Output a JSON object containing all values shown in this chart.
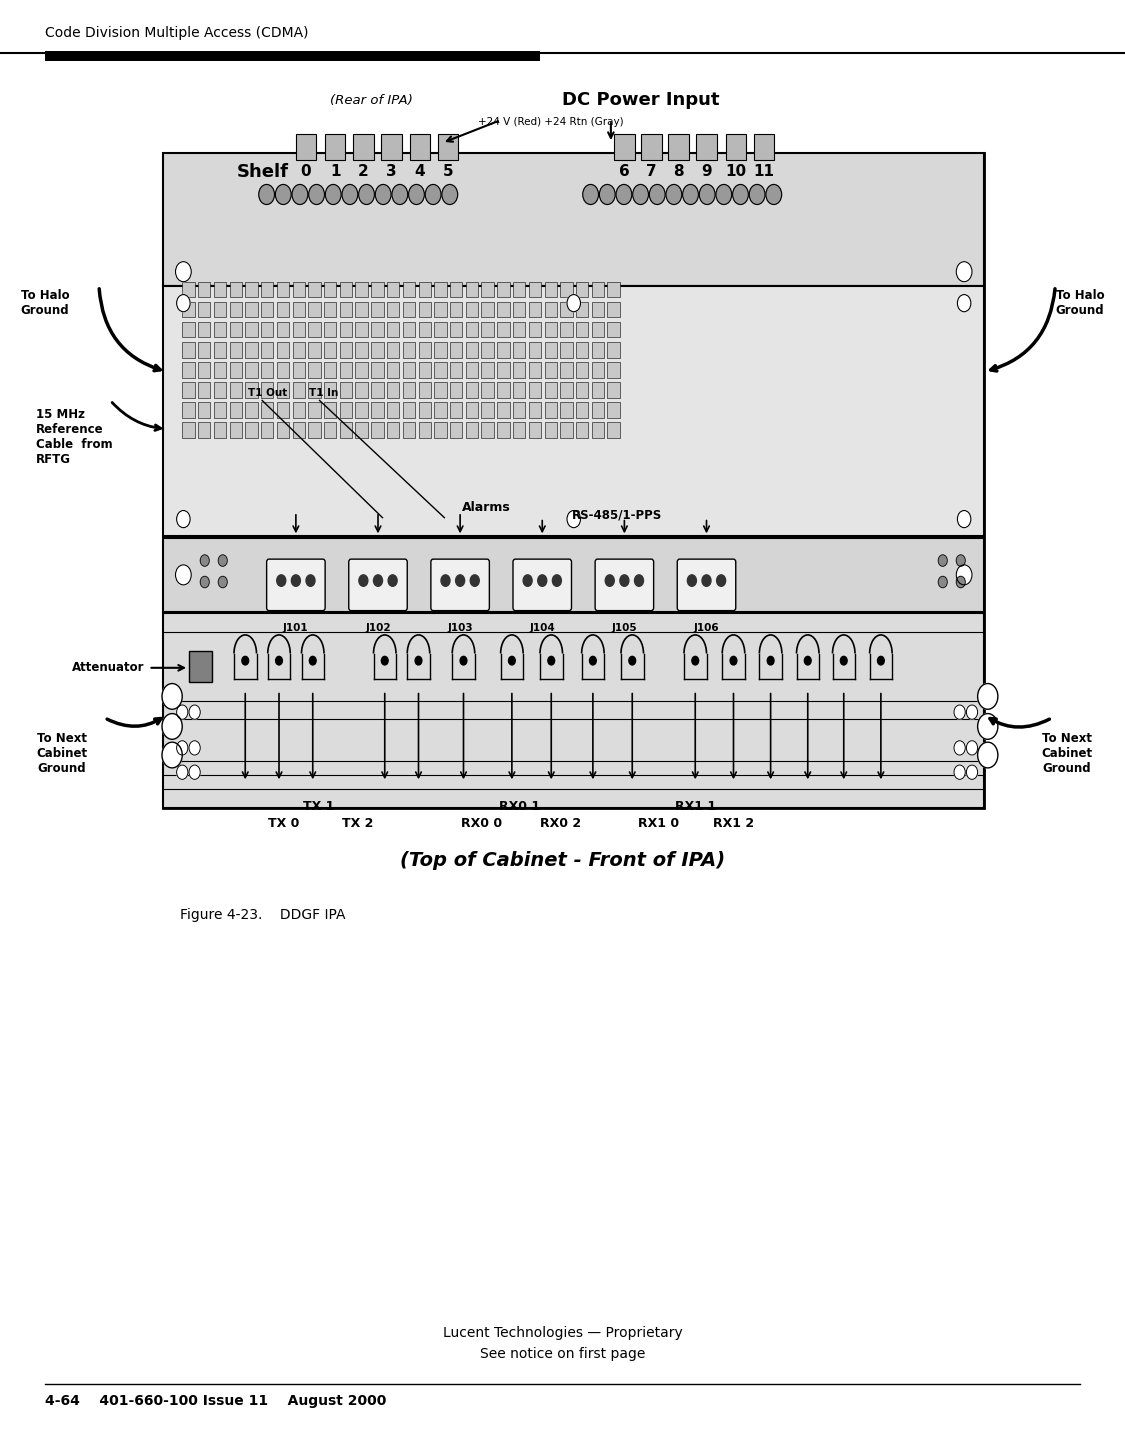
{
  "header_text": "Code Division Multiple Access (CDMA)",
  "page_bg": "#ffffff",
  "rear_label": "(Rear of IPA)",
  "dc_power_label": "DC Power Input",
  "dc_power_sub": "+24 V (Red) +24 Rtn (Gray)",
  "shelf_label": "Shelf",
  "shelf_nums_left": [
    "0",
    "1",
    "2",
    "3",
    "4",
    "5"
  ],
  "shelf_nums_right": [
    "6",
    "7",
    "8",
    "9",
    "10",
    "11"
  ],
  "t1_out_label": "T1 Out",
  "t1_in_label": "T1 In",
  "alarms_label": "Alarms",
  "rs485_label": "RS-485/1-PPS",
  "j_labels": [
    "J101",
    "J102",
    "J103",
    "J104",
    "J105",
    "J106"
  ],
  "attenuator_label": "Attenuator",
  "to_halo_ground_left": "To Halo\nGround",
  "to_halo_ground_right": "To Halo\nGround",
  "to_next_cabinet_left": "To Next\nCabinet\nGround",
  "to_next_cabinet_right": "To Next\nCabinet\nGround",
  "ref_cable_label": "15 MHz\nReference\nCable  from\nRFTG",
  "top_cabinet_label": "(Top of Cabinet - Front of IPA)",
  "figure_caption": "Figure 4-23.    DDGF IPA",
  "footer_line1": "Lucent Technologies — Proprietary",
  "footer_line2": "See notice on first page",
  "page_num": "4-64    401-660-100 Issue 11    August 2000"
}
